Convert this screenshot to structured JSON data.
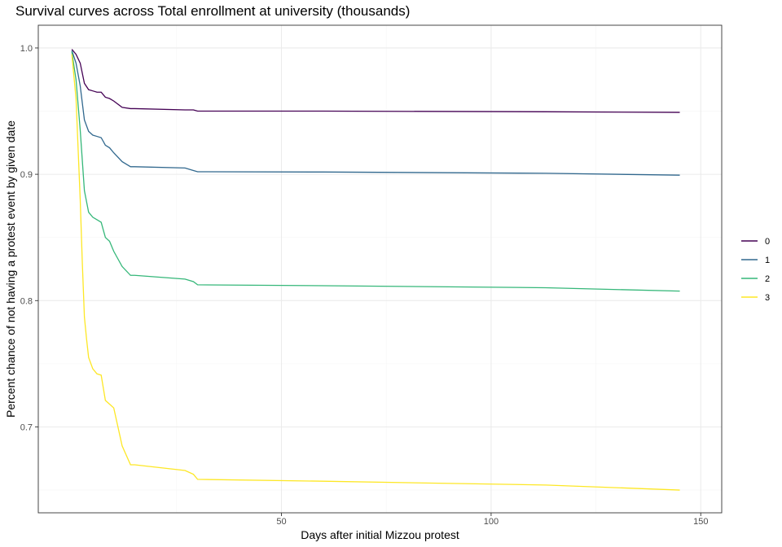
{
  "chart_data": {
    "type": "line",
    "title": "Survival curves across Total enrollment at university (thousands)",
    "xlabel": "Days after initial Mizzou protest",
    "ylabel": "Percent chance of not having a protest event by given date",
    "xlim": [
      -8,
      155
    ],
    "ylim": [
      0.632,
      1.018
    ],
    "x_ticks": [
      50,
      100,
      150
    ],
    "x_tick_labels": [
      "50",
      "100",
      "150"
    ],
    "x_minor_ticks": [
      25,
      75,
      125
    ],
    "y_ticks": [
      0.7,
      0.8,
      0.9,
      1.0
    ],
    "y_tick_labels": [
      "0.7",
      "0.8",
      "0.9",
      "1.0"
    ],
    "y_minor_ticks": [
      0.65,
      0.75,
      0.85,
      0.95
    ],
    "grid": true,
    "legend_position": "right",
    "series": [
      {
        "name": "0",
        "color": "#440154",
        "x": [
          0,
          1,
          2,
          3,
          4,
          5,
          6,
          7,
          8,
          9,
          10,
          12,
          14,
          15,
          27,
          29,
          30,
          60,
          113,
          145
        ],
        "y": [
          0.999,
          0.995,
          0.988,
          0.972,
          0.967,
          0.966,
          0.965,
          0.965,
          0.961,
          0.96,
          0.958,
          0.953,
          0.952,
          0.952,
          0.951,
          0.951,
          0.95,
          0.95,
          0.9495,
          0.949
        ]
      },
      {
        "name": "1",
        "color": "#31688E",
        "x": [
          0,
          1,
          2,
          3,
          4,
          5,
          6,
          7,
          8,
          9,
          10,
          12,
          14,
          15,
          27,
          29,
          30,
          60,
          113,
          145
        ],
        "y": [
          0.998,
          0.988,
          0.97,
          0.943,
          0.934,
          0.931,
          0.93,
          0.929,
          0.923,
          0.921,
          0.917,
          0.91,
          0.906,
          0.906,
          0.905,
          0.903,
          0.902,
          0.9018,
          0.9008,
          0.8993
        ]
      },
      {
        "name": "2",
        "color": "#35B779",
        "x": [
          0,
          1,
          2,
          3,
          4,
          5,
          6,
          7,
          8,
          9,
          10,
          12,
          14,
          15,
          27,
          29,
          30,
          60,
          113,
          145
        ],
        "y": [
          0.997,
          0.975,
          0.935,
          0.887,
          0.87,
          0.866,
          0.864,
          0.862,
          0.85,
          0.847,
          0.839,
          0.827,
          0.82,
          0.82,
          0.817,
          0.815,
          0.8125,
          0.8118,
          0.8102,
          0.8075
        ]
      },
      {
        "name": "3",
        "color": "#FDE725",
        "x": [
          0,
          1,
          1.5,
          2,
          2.5,
          3,
          3.5,
          4,
          5,
          6,
          7,
          8,
          9,
          10,
          12,
          14,
          15,
          27,
          29,
          30,
          60,
          113,
          145
        ],
        "y": [
          0.995,
          0.96,
          0.92,
          0.88,
          0.83,
          0.787,
          0.77,
          0.755,
          0.746,
          0.742,
          0.741,
          0.721,
          0.718,
          0.715,
          0.685,
          0.67,
          0.67,
          0.6655,
          0.6625,
          0.6585,
          0.657,
          0.654,
          0.65
        ]
      }
    ]
  }
}
